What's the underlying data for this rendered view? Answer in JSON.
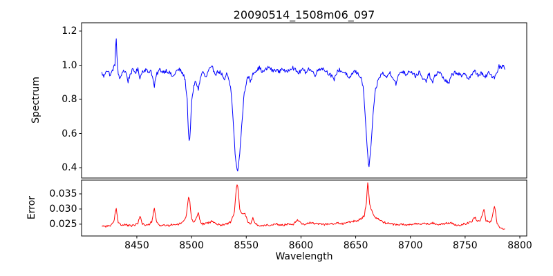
{
  "figure": {
    "title": "20090514_1508m06_097",
    "background_color": "#ffffff"
  },
  "x_axis": {
    "label": "Wavelength",
    "ticks": [
      8450,
      8500,
      8550,
      8600,
      8650,
      8700,
      8750,
      8800
    ],
    "tick_labels": [
      "8450",
      "8500",
      "8550",
      "8600",
      "8650",
      "8700",
      "8750",
      "8800"
    ]
  },
  "chart_data": [
    {
      "type": "line",
      "title": "20090514_1508m06_097",
      "ylabel": "Spectrum",
      "xlabel": "",
      "line_color": "#0000ff",
      "xlim": [
        8399.5,
        8806.3
      ],
      "ylim": [
        0.3395,
        1.2485
      ],
      "yticks": [
        0.4,
        0.6,
        0.8,
        1.0,
        1.2
      ],
      "ytick_labels": [
        "0.4",
        "0.6",
        "0.8",
        "1.0",
        "1.2"
      ],
      "data_x_range": [
        8418,
        8787
      ],
      "description": "Noisy stellar spectrum, continuum ~0.97, emission spike to 1.19 at 8431, Ca II triplet absorption dips at 8498 (to 0.54), 8542 (to 0.37), 8662 (to 0.39)",
      "noise_amplitude": 0.012,
      "noise_seed": 1234,
      "anchors": [
        [
          8418,
          0.955
        ],
        [
          8420,
          0.93
        ],
        [
          8422,
          0.975
        ],
        [
          8424,
          0.96
        ],
        [
          8426,
          0.94
        ],
        [
          8428,
          0.975
        ],
        [
          8430,
          1.0
        ],
        [
          8431,
          1.19
        ],
        [
          8432,
          1.02
        ],
        [
          8433,
          0.95
        ],
        [
          8435,
          0.915
        ],
        [
          8437,
          0.97
        ],
        [
          8440,
          0.96
        ],
        [
          8442,
          0.905
        ],
        [
          8444,
          0.95
        ],
        [
          8446,
          0.97
        ],
        [
          8449,
          0.96
        ],
        [
          8451,
          0.975
        ],
        [
          8453,
          0.925
        ],
        [
          8455,
          0.965
        ],
        [
          8458,
          0.975
        ],
        [
          8460,
          0.96
        ],
        [
          8463,
          0.97
        ],
        [
          8466,
          0.875
        ],
        [
          8468,
          0.945
        ],
        [
          8471,
          0.975
        ],
        [
          8474,
          0.96
        ],
        [
          8477,
          0.97
        ],
        [
          8480,
          0.955
        ],
        [
          8483,
          0.93
        ],
        [
          8486,
          0.965
        ],
        [
          8489,
          0.975
        ],
        [
          8492,
          0.95
        ],
        [
          8494,
          0.92
        ],
        [
          8496,
          0.8
        ],
        [
          8497,
          0.62
        ],
        [
          8498,
          0.54
        ],
        [
          8499,
          0.63
        ],
        [
          8500,
          0.78
        ],
        [
          8502,
          0.875
        ],
        [
          8504,
          0.91
        ],
        [
          8506,
          0.855
        ],
        [
          8508,
          0.92
        ],
        [
          8510,
          0.965
        ],
        [
          8513,
          0.925
        ],
        [
          8516,
          0.975
        ],
        [
          8519,
          0.985
        ],
        [
          8522,
          0.95
        ],
        [
          8525,
          0.965
        ],
        [
          8528,
          0.945
        ],
        [
          8530,
          0.9
        ],
        [
          8532,
          0.955
        ],
        [
          8534,
          0.91
        ],
        [
          8536,
          0.86
        ],
        [
          8538,
          0.68
        ],
        [
          8540,
          0.46
        ],
        [
          8542,
          0.37
        ],
        [
          8544,
          0.48
        ],
        [
          8546,
          0.66
        ],
        [
          8548,
          0.83
        ],
        [
          8550,
          0.9
        ],
        [
          8552,
          0.935
        ],
        [
          8554,
          0.9
        ],
        [
          8556,
          0.955
        ],
        [
          8559,
          0.97
        ],
        [
          8562,
          0.985
        ],
        [
          8565,
          0.96
        ],
        [
          8568,
          0.975
        ],
        [
          8571,
          0.99
        ],
        [
          8574,
          0.965
        ],
        [
          8577,
          0.975
        ],
        [
          8580,
          0.96
        ],
        [
          8583,
          0.985
        ],
        [
          8586,
          0.955
        ],
        [
          8589,
          0.975
        ],
        [
          8592,
          0.99
        ],
        [
          8595,
          0.97
        ],
        [
          8598,
          0.955
        ],
        [
          8601,
          0.975
        ],
        [
          8604,
          0.96
        ],
        [
          8607,
          0.98
        ],
        [
          8610,
          0.965
        ],
        [
          8613,
          0.945
        ],
        [
          8616,
          0.975
        ],
        [
          8619,
          0.985
        ],
        [
          8622,
          0.97
        ],
        [
          8625,
          0.955
        ],
        [
          8628,
          0.935
        ],
        [
          8630,
          0.91
        ],
        [
          8632,
          0.95
        ],
        [
          8635,
          0.975
        ],
        [
          8638,
          0.96
        ],
        [
          8641,
          0.955
        ],
        [
          8644,
          0.91
        ],
        [
          8646,
          0.945
        ],
        [
          8649,
          0.965
        ],
        [
          8652,
          0.95
        ],
        [
          8655,
          0.93
        ],
        [
          8657,
          0.86
        ],
        [
          8659,
          0.68
        ],
        [
          8660,
          0.56
        ],
        [
          8662,
          0.39
        ],
        [
          8664,
          0.53
        ],
        [
          8666,
          0.72
        ],
        [
          8668,
          0.85
        ],
        [
          8670,
          0.9
        ],
        [
          8672,
          0.935
        ],
        [
          8675,
          0.955
        ],
        [
          8678,
          0.925
        ],
        [
          8681,
          0.96
        ],
        [
          8684,
          0.93
        ],
        [
          8687,
          0.89
        ],
        [
          8690,
          0.955
        ],
        [
          8693,
          0.965
        ],
        [
          8696,
          0.945
        ],
        [
          8699,
          0.97
        ],
        [
          8702,
          0.955
        ],
        [
          8705,
          0.935
        ],
        [
          8708,
          0.96
        ],
        [
          8711,
          0.92
        ],
        [
          8714,
          0.905
        ],
        [
          8717,
          0.95
        ],
        [
          8720,
          0.895
        ],
        [
          8723,
          0.945
        ],
        [
          8726,
          0.965
        ],
        [
          8729,
          0.935
        ],
        [
          8732,
          0.91
        ],
        [
          8735,
          0.89
        ],
        [
          8738,
          0.945
        ],
        [
          8741,
          0.96
        ],
        [
          8744,
          0.95
        ],
        [
          8747,
          0.93
        ],
        [
          8750,
          0.955
        ],
        [
          8753,
          0.92
        ],
        [
          8756,
          0.945
        ],
        [
          8759,
          0.965
        ],
        [
          8762,
          0.94
        ],
        [
          8765,
          0.955
        ],
        [
          8768,
          0.925
        ],
        [
          8771,
          0.955
        ],
        [
          8774,
          0.94
        ],
        [
          8777,
          0.93
        ],
        [
          8779,
          0.96
        ],
        [
          8781,
          0.995
        ],
        [
          8783,
          0.985
        ],
        [
          8785,
          1.0
        ],
        [
          8787,
          0.975
        ]
      ]
    },
    {
      "type": "line",
      "ylabel": "Error",
      "xlabel": "Wavelength",
      "line_color": "#ff0000",
      "xlim": [
        8399.5,
        8806.3
      ],
      "ylim": [
        0.0211,
        0.03955
      ],
      "yticks": [
        0.025,
        0.03,
        0.035
      ],
      "ytick_labels": [
        "0.025",
        "0.030",
        "0.035"
      ],
      "data_x_range": [
        8418,
        8787
      ],
      "description": "Error spectrum, baseline ~0.0245, peaks at 8431 (0.0305), 8453, 8466, 8498 (0.0338), 8506, 8542 (0.0385), 8661 (0.039), 8767, 8777 (0.0315), drops to 0.023 at the red end",
      "noise_amplitude": 0.00035,
      "noise_seed": 99,
      "anchors": [
        [
          8418,
          0.0245
        ],
        [
          8422,
          0.0243
        ],
        [
          8426,
          0.0246
        ],
        [
          8429,
          0.0255
        ],
        [
          8431,
          0.0305
        ],
        [
          8433,
          0.0258
        ],
        [
          8436,
          0.0246
        ],
        [
          8440,
          0.0248
        ],
        [
          8444,
          0.0244
        ],
        [
          8448,
          0.0247
        ],
        [
          8451,
          0.0252
        ],
        [
          8453,
          0.028
        ],
        [
          8455,
          0.0252
        ],
        [
          8458,
          0.0246
        ],
        [
          8461,
          0.0248
        ],
        [
          8464,
          0.026
        ],
        [
          8466,
          0.0304
        ],
        [
          8468,
          0.0256
        ],
        [
          8471,
          0.0246
        ],
        [
          8475,
          0.0247
        ],
        [
          8479,
          0.0244
        ],
        [
          8483,
          0.025
        ],
        [
          8487,
          0.0248
        ],
        [
          8490,
          0.0252
        ],
        [
          8493,
          0.0262
        ],
        [
          8495,
          0.0272
        ],
        [
          8497,
          0.0335
        ],
        [
          8498,
          0.0338
        ],
        [
          8500,
          0.027
        ],
        [
          8502,
          0.0256
        ],
        [
          8504,
          0.0264
        ],
        [
          8506,
          0.029
        ],
        [
          8508,
          0.026
        ],
        [
          8510,
          0.025
        ],
        [
          8513,
          0.0252
        ],
        [
          8516,
          0.0255
        ],
        [
          8519,
          0.026
        ],
        [
          8522,
          0.0252
        ],
        [
          8526,
          0.0247
        ],
        [
          8530,
          0.025
        ],
        [
          8533,
          0.0252
        ],
        [
          8536,
          0.0258
        ],
        [
          8539,
          0.0285
        ],
        [
          8541,
          0.0372
        ],
        [
          8542,
          0.0385
        ],
        [
          8544,
          0.03
        ],
        [
          8546,
          0.0288
        ],
        [
          8549,
          0.0284
        ],
        [
          8551,
          0.026
        ],
        [
          8554,
          0.0252
        ],
        [
          8556,
          0.027
        ],
        [
          8558,
          0.0252
        ],
        [
          8561,
          0.0246
        ],
        [
          8565,
          0.0245
        ],
        [
          8569,
          0.0248
        ],
        [
          8573,
          0.0246
        ],
        [
          8577,
          0.025
        ],
        [
          8581,
          0.0247
        ],
        [
          8585,
          0.0248
        ],
        [
          8589,
          0.0252
        ],
        [
          8593,
          0.025
        ],
        [
          8597,
          0.0266
        ],
        [
          8600,
          0.0254
        ],
        [
          8603,
          0.025
        ],
        [
          8606,
          0.0253
        ],
        [
          8610,
          0.0255
        ],
        [
          8613,
          0.025
        ],
        [
          8617,
          0.0252
        ],
        [
          8621,
          0.0249
        ],
        [
          8625,
          0.0252
        ],
        [
          8629,
          0.025
        ],
        [
          8633,
          0.0254
        ],
        [
          8637,
          0.0251
        ],
        [
          8641,
          0.0255
        ],
        [
          8645,
          0.0257
        ],
        [
          8649,
          0.026
        ],
        [
          8652,
          0.0262
        ],
        [
          8655,
          0.0268
        ],
        [
          8658,
          0.028
        ],
        [
          8660,
          0.033
        ],
        [
          8661,
          0.039
        ],
        [
          8663,
          0.031
        ],
        [
          8665,
          0.029
        ],
        [
          8667,
          0.0274
        ],
        [
          8670,
          0.0268
        ],
        [
          8673,
          0.0262
        ],
        [
          8676,
          0.0256
        ],
        [
          8680,
          0.0252
        ],
        [
          8684,
          0.025
        ],
        [
          8688,
          0.0248
        ],
        [
          8692,
          0.025
        ],
        [
          8696,
          0.0247
        ],
        [
          8700,
          0.0249
        ],
        [
          8704,
          0.0251
        ],
        [
          8708,
          0.025
        ],
        [
          8712,
          0.0253
        ],
        [
          8716,
          0.025
        ],
        [
          8720,
          0.0255
        ],
        [
          8724,
          0.025
        ],
        [
          8728,
          0.0249
        ],
        [
          8732,
          0.0252
        ],
        [
          8736,
          0.0255
        ],
        [
          8740,
          0.0249
        ],
        [
          8744,
          0.0247
        ],
        [
          8748,
          0.025
        ],
        [
          8752,
          0.0253
        ],
        [
          8756,
          0.0258
        ],
        [
          8759,
          0.0274
        ],
        [
          8761,
          0.026
        ],
        [
          8764,
          0.0262
        ],
        [
          8767,
          0.03
        ],
        [
          8769,
          0.0262
        ],
        [
          8772,
          0.0256
        ],
        [
          8774,
          0.026
        ],
        [
          8777,
          0.0315
        ],
        [
          8779,
          0.0252
        ],
        [
          8781,
          0.024
        ],
        [
          8784,
          0.0236
        ],
        [
          8787,
          0.0233
        ]
      ]
    }
  ]
}
